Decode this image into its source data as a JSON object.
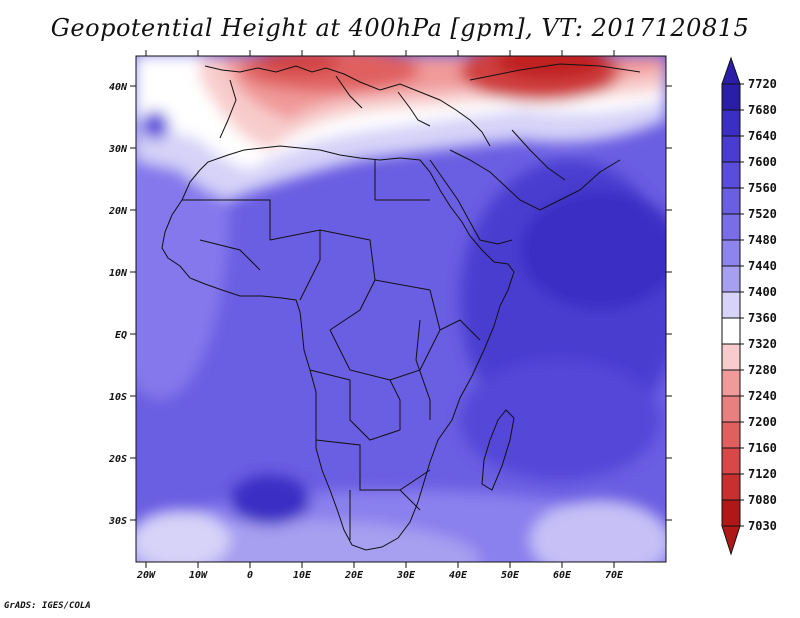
{
  "title": "Geopotential Height at 400hPa [gpm], VT: 2017120815",
  "credit": "GrADS: IGES/COLA",
  "map": {
    "lon_labels": [
      "20W",
      "10W",
      "0",
      "10E",
      "20E",
      "30E",
      "40E",
      "50E",
      "60E",
      "70E"
    ],
    "lat_labels": [
      "40N",
      "30N",
      "20N",
      "10N",
      "EQ",
      "10S",
      "20S",
      "30S"
    ]
  },
  "colorbar": {
    "levels": [
      "7720",
      "7680",
      "7640",
      "7600",
      "7560",
      "7520",
      "7480",
      "7440",
      "7400",
      "7360",
      "7320",
      "7280",
      "7240",
      "7200",
      "7160",
      "7120",
      "7080",
      "7030"
    ],
    "colors": {
      "dark_blue": "#2a1ea8",
      "blue": "#5a4cdc",
      "mid_blue": "#7a6ee8",
      "light_blue": "#a79ff0",
      "pale_blue": "#d6d2f8",
      "white": "#ffffff",
      "pale_red": "#f8cccc",
      "light_red": "#f09a9a",
      "red": "#e06060",
      "dark_red": "#c83030",
      "deep_red": "#b01818"
    }
  }
}
